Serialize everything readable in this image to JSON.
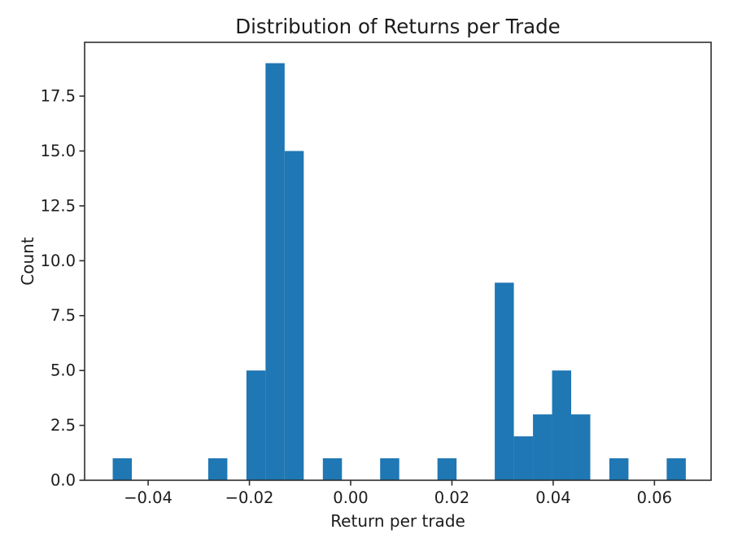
{
  "figure": {
    "background_color": "#ffffff",
    "spine_color": "#2e2e2e",
    "text_color": "#1c1c1c"
  },
  "chart_data": {
    "type": "bar",
    "subtype": "histogram",
    "title": "Distribution of Returns per Trade",
    "xlabel": "Return per trade",
    "ylabel": "Count",
    "bar_color": "#1f77b4",
    "grid": false,
    "legend": "none",
    "bin_start": -0.047,
    "bin_width": 0.003773,
    "counts": [
      1,
      0,
      0,
      0,
      0,
      1,
      0,
      5,
      19,
      15,
      0,
      1,
      0,
      0,
      1,
      0,
      0,
      1,
      0,
      0,
      9,
      2,
      3,
      5,
      3,
      0,
      1,
      0,
      0,
      1
    ],
    "total_count": 68,
    "xlim": [
      -0.05255,
      0.07119
    ],
    "ylim": [
      0,
      19.95
    ],
    "xticks": [
      {
        "value": -0.04,
        "label": "−0.04"
      },
      {
        "value": -0.02,
        "label": "−0.02"
      },
      {
        "value": 0.0,
        "label": "0.00"
      },
      {
        "value": 0.02,
        "label": "0.02"
      },
      {
        "value": 0.04,
        "label": "0.04"
      },
      {
        "value": 0.06,
        "label": "0.06"
      }
    ],
    "yticks": [
      {
        "value": 0.0,
        "label": "0.0"
      },
      {
        "value": 2.5,
        "label": "2.5"
      },
      {
        "value": 5.0,
        "label": "5.0"
      },
      {
        "value": 7.5,
        "label": "7.5"
      },
      {
        "value": 10.0,
        "label": "10.0"
      },
      {
        "value": 12.5,
        "label": "12.5"
      },
      {
        "value": 15.0,
        "label": "15.0"
      },
      {
        "value": 17.5,
        "label": "17.5"
      }
    ]
  }
}
